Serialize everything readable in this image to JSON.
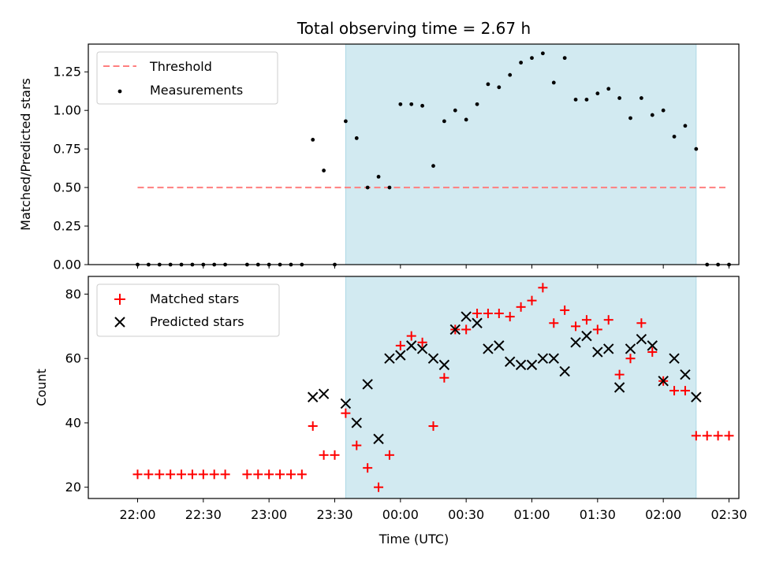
{
  "chart_data": {
    "title": "Total observing time = 2.67 h",
    "xlabel": "Time (UTC)",
    "x_ticks": [
      "22:00",
      "22:30",
      "23:00",
      "23:30",
      "00:00",
      "00:30",
      "01:00",
      "01:30",
      "02:00",
      "02:30"
    ],
    "x_range_minutes_after_22_00": [
      -22.5,
      274.5
    ],
    "shaded_interval_minutes_after_22_00": [
      95,
      255
    ],
    "shaded_color": "#add8e6",
    "panels": [
      {
        "type": "scatter",
        "ylabel": "Matched/Predicted stars",
        "ylim": [
          0,
          1.43
        ],
        "y_ticks": [
          "0.00",
          "0.25",
          "0.50",
          "0.75",
          "1.00",
          "1.25"
        ],
        "y_tick_values": [
          0,
          0.25,
          0.5,
          0.75,
          1.0,
          1.25
        ],
        "threshold": {
          "name": "Threshold",
          "value": 0.5,
          "x_range": [
            0,
            270
          ],
          "color": "#ff7f7f"
        },
        "series": [
          {
            "name": "Measurements",
            "color": "#000000",
            "x": [
              0,
              5,
              10,
              15,
              20,
              25,
              30,
              35,
              40,
              50,
              55,
              60,
              65,
              70,
              75,
              80,
              85,
              90,
              95,
              100,
              105,
              110,
              115,
              120,
              125,
              130,
              135,
              140,
              145,
              150,
              155,
              160,
              165,
              170,
              175,
              180,
              185,
              190,
              195,
              200,
              205,
              210,
              215,
              220,
              225,
              230,
              235,
              240,
              245,
              250,
              255,
              260,
              265,
              270
            ],
            "y": [
              0,
              0,
              0,
              0,
              0,
              0,
              0,
              0,
              0,
              0,
              0,
              0,
              0,
              0,
              0,
              0.81,
              0.61,
              0,
              0.93,
              0.82,
              0.5,
              0.57,
              0.5,
              1.04,
              1.04,
              1.03,
              0.64,
              0.93,
              1.0,
              0.94,
              1.04,
              1.17,
              1.15,
              1.23,
              1.31,
              1.34,
              1.37,
              1.18,
              1.34,
              1.07,
              1.07,
              1.11,
              1.14,
              1.08,
              0.95,
              1.08,
              0.97,
              1.0,
              0.83,
              0.9,
              0.75,
              0,
              0,
              0
            ]
          }
        ]
      },
      {
        "type": "scatter",
        "ylabel": "Count",
        "ylim": [
          16.5,
          85.5
        ],
        "y_ticks": [
          "20",
          "40",
          "60",
          "80"
        ],
        "y_tick_values": [
          20,
          40,
          60,
          80
        ],
        "series": [
          {
            "name": "Matched stars",
            "marker": "plus",
            "color": "#ff0000",
            "x": [
              0,
              5,
              10,
              15,
              20,
              25,
              30,
              35,
              40,
              50,
              55,
              60,
              65,
              70,
              75,
              80,
              85,
              90,
              95,
              100,
              105,
              110,
              115,
              120,
              125,
              130,
              135,
              140,
              145,
              150,
              155,
              160,
              165,
              170,
              175,
              180,
              185,
              190,
              195,
              200,
              205,
              210,
              215,
              220,
              225,
              230,
              235,
              240,
              245,
              250,
              255,
              260,
              265,
              270
            ],
            "y": [
              24,
              24,
              24,
              24,
              24,
              24,
              24,
              24,
              24,
              24,
              24,
              24,
              24,
              24,
              24,
              39,
              30,
              30,
              43,
              33,
              26,
              20,
              30,
              64,
              67,
              65,
              39,
              54,
              69,
              69,
              74,
              74,
              74,
              73,
              76,
              78,
              82,
              71,
              75,
              70,
              72,
              69,
              72,
              55,
              60,
              71,
              62,
              53,
              50,
              50,
              36,
              36,
              36,
              36
            ]
          },
          {
            "name": "Predicted stars",
            "marker": "x",
            "color": "#000000",
            "x": [
              80,
              85,
              95,
              100,
              105,
              110,
              115,
              120,
              125,
              130,
              135,
              140,
              145,
              150,
              155,
              160,
              165,
              170,
              175,
              180,
              185,
              190,
              195,
              200,
              205,
              210,
              215,
              220,
              225,
              230,
              235,
              240,
              245,
              250,
              255
            ],
            "y": [
              48,
              49,
              46,
              40,
              52,
              35,
              60,
              61,
              64,
              63,
              60,
              58,
              69,
              73,
              71,
              63,
              64,
              59,
              58,
              58,
              60,
              60,
              56,
              65,
              67,
              62,
              63,
              51,
              63,
              66,
              64,
              53,
              60,
              55,
              48
            ]
          }
        ]
      }
    ]
  }
}
